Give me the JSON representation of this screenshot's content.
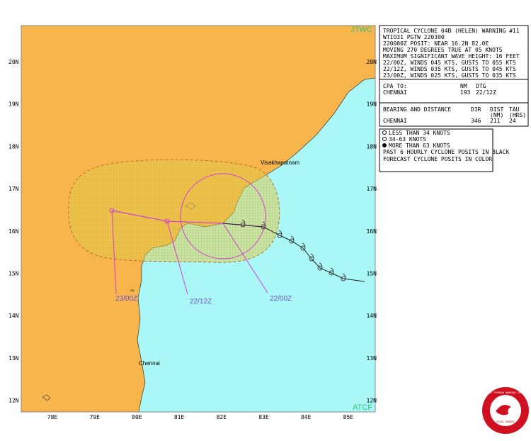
{
  "map": {
    "corner_labels": {
      "top": "JTWC",
      "bottom": "ATCF"
    },
    "lat_labels": [
      "20N",
      "19N",
      "18N",
      "17N",
      "16N",
      "15N",
      "14N",
      "13N",
      "12N"
    ],
    "lon_labels": [
      "78E",
      "79E",
      "80E",
      "81E",
      "82E",
      "83E",
      "84E",
      "85E"
    ],
    "places": [
      "Visakhapatnam",
      "Chennai"
    ],
    "forecast_labels": [
      "23/00Z",
      "22/12Z",
      "22/00Z"
    ]
  },
  "warning": {
    "lines": [
      "TROPICAL CYCLONE 04B (HELEN) WARNING #11",
      "WTIO31 PGTW 220300",
      "220000Z POSIT: NEAR 16.2N 82.0E",
      "MOVING 270 DEGREES TRUE AT 05 KNOTS",
      "MAXIMUM SIGNIFICANT WAVE HEIGHT: 16 FEET",
      "22/00Z, WINDS 045 KTS, GUSTS TO 055 KTS",
      "22/12Z, WINDS 035 KTS, GUSTS TO 045 KTS",
      "23/00Z, WINDS 025 KTS, GUSTS TO 035 KTS"
    ],
    "cpa": {
      "header": [
        "CPA TO:",
        "NM",
        "DTG"
      ],
      "row": [
        "CHENNAI",
        "193",
        "22/12Z"
      ]
    },
    "bearing": {
      "header": [
        "BEARING AND DISTANCE",
        "DIR",
        "DIST",
        "TAU"
      ],
      "subheader": [
        "(NM)",
        "(HRS)"
      ],
      "row": [
        "CHENNAI",
        "346",
        "211",
        "24"
      ]
    }
  },
  "legend": {
    "items": [
      "LESS THAN 34 KNOTS",
      "34-63 KNOTS",
      "MORE THAN 63 KNOTS"
    ],
    "notes": [
      "PAST 6 HOURLY CYCLONE POSITS IN BLACK",
      "FORECAST CYCLONE POSITS IN COLOR"
    ]
  },
  "logo": {
    "top": "JOINT TYPHOON WARNING CENTER",
    "bottom": "PEARL HARBOR"
  }
}
